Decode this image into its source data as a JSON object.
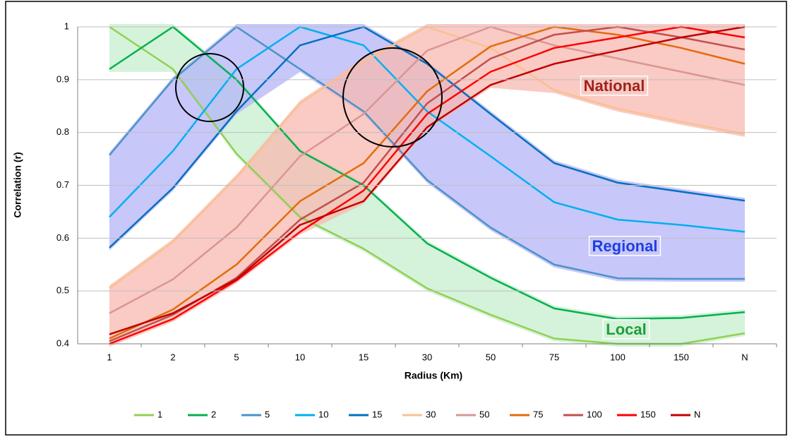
{
  "chart_data": {
    "type": "line",
    "x_label": "Radius (Km)",
    "y_label": "Correlation (r)",
    "categories": [
      "1",
      "2",
      "5",
      "10",
      "15",
      "30",
      "50",
      "75",
      "100",
      "150",
      "N"
    ],
    "ylim": [
      0.4,
      1
    ],
    "yticks": [
      0.4,
      0.5,
      0.6,
      0.7,
      0.8,
      0.9,
      1
    ],
    "grid": true,
    "legend": "bottom",
    "annotations": [
      "National",
      "Regional",
      "Local"
    ],
    "series": [
      {
        "name": "1",
        "color": "#92d050",
        "values": [
          1,
          0.92,
          0.76,
          0.64,
          0.58,
          0.505,
          0.455,
          0.41,
          0.4,
          0.4,
          0.42
        ]
      },
      {
        "name": "2",
        "color": "#00b050",
        "values": [
          0.92,
          1,
          0.9,
          0.765,
          0.7,
          0.59,
          0.525,
          0.467,
          0.447,
          0.449,
          0.46
        ]
      },
      {
        "name": "5",
        "color": "#4b93c8",
        "values": [
          0.757,
          0.9,
          1,
          0.92,
          0.84,
          0.71,
          0.62,
          0.55,
          0.524,
          0.523,
          0.523
        ]
      },
      {
        "name": "10",
        "color": "#00b0f0",
        "values": [
          0.64,
          0.765,
          0.92,
          1,
          0.965,
          0.84,
          0.755,
          0.668,
          0.635,
          0.625,
          0.612
        ]
      },
      {
        "name": "15",
        "color": "#0070c0",
        "values": [
          0.582,
          0.695,
          0.84,
          0.965,
          1,
          0.93,
          0.835,
          0.742,
          0.705,
          0.688,
          0.671
        ]
      },
      {
        "name": "30",
        "color": "#fac090",
        "values": [
          0.505,
          0.593,
          0.715,
          0.855,
          0.935,
          1,
          0.96,
          0.88,
          0.845,
          0.82,
          0.797
        ]
      },
      {
        "name": "50",
        "color": "#d99694",
        "values": [
          0.458,
          0.522,
          0.62,
          0.755,
          0.835,
          0.955,
          1,
          0.965,
          0.94,
          0.915,
          0.89
        ]
      },
      {
        "name": "75",
        "color": "#e36c09",
        "values": [
          0.41,
          0.465,
          0.55,
          0.67,
          0.742,
          0.878,
          0.963,
          1,
          0.985,
          0.96,
          0.93
        ]
      },
      {
        "name": "100",
        "color": "#c0504d",
        "values": [
          0.405,
          0.455,
          0.525,
          0.635,
          0.705,
          0.855,
          0.94,
          0.985,
          1,
          0.98,
          0.957
        ]
      },
      {
        "name": "150",
        "color": "#ff0000",
        "values": [
          0.4,
          0.447,
          0.52,
          0.612,
          0.69,
          0.835,
          0.915,
          0.96,
          0.98,
          1,
          0.98
        ]
      },
      {
        "name": "N",
        "color": "#c00000",
        "values": [
          0.418,
          0.458,
          0.522,
          0.625,
          0.67,
          0.81,
          0.89,
          0.93,
          0.955,
          0.98,
          1
        ]
      }
    ]
  }
}
